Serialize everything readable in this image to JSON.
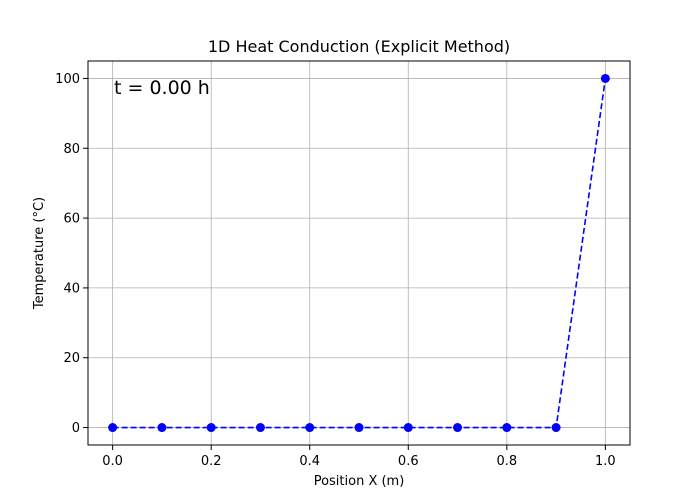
{
  "chart_data": {
    "type": "line",
    "title": "1D Heat Conduction (Explicit Method)",
    "xlabel": "Position X (m)",
    "ylabel": "Temperature (°C)",
    "annotation": "t = 0.00 h",
    "xlim": [
      -0.05,
      1.05
    ],
    "ylim": [
      -5,
      105
    ],
    "xticks": [
      0.0,
      0.2,
      0.4,
      0.6,
      0.8,
      1.0
    ],
    "xtick_labels": [
      "0.0",
      "0.2",
      "0.4",
      "0.6",
      "0.8",
      "1.0"
    ],
    "yticks": [
      0,
      20,
      40,
      60,
      80,
      100
    ],
    "ytick_labels": [
      "0",
      "20",
      "40",
      "60",
      "80",
      "100"
    ],
    "grid": true,
    "series": [
      {
        "x": [
          0.0,
          0.1,
          0.2,
          0.3,
          0.4,
          0.5,
          0.6,
          0.7,
          0.8,
          0.9,
          1.0
        ],
        "y": [
          0,
          0,
          0,
          0,
          0,
          0,
          0,
          0,
          0,
          0,
          100
        ],
        "color": "#0000ff",
        "linestyle": "dashed",
        "marker": "circle"
      }
    ]
  }
}
